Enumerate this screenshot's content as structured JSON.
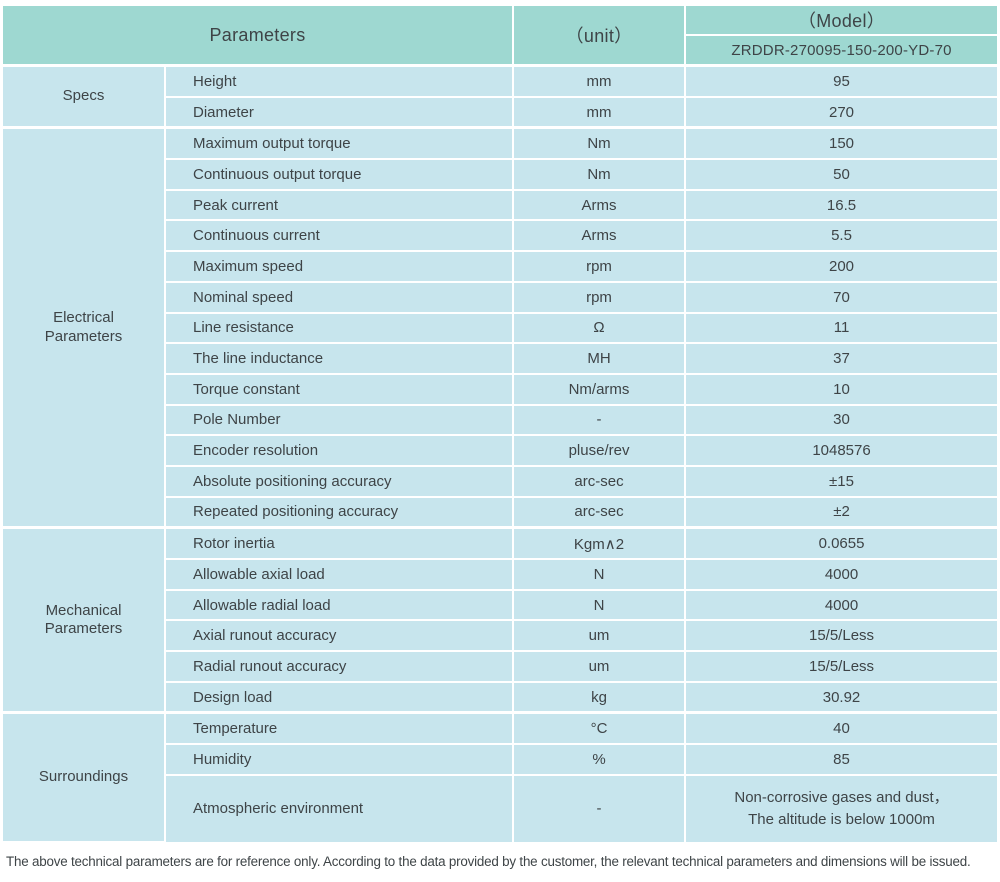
{
  "colors": {
    "header_bg": "#9ed8d1",
    "row_bg": "#c7e5ed",
    "grid": "#ffffff",
    "text": "#3e4447"
  },
  "header": {
    "parameters_label": "Parameters",
    "unit_label": "（unit）",
    "model_label": "（Model）",
    "model_value": "ZRDDR-270095-150-200-YD-70"
  },
  "sections": [
    {
      "name": "Specs",
      "name_lines": [
        "Specs"
      ],
      "rows": [
        {
          "param": "Height",
          "unit": "mm",
          "value": "95"
        },
        {
          "param": "Diameter",
          "unit": "mm",
          "value": "270"
        }
      ]
    },
    {
      "name": "Electrical Parameters",
      "name_lines": [
        "Electrical",
        "Parameters"
      ],
      "rows": [
        {
          "param": "Maximum output torque",
          "unit": "Nm",
          "value": "150"
        },
        {
          "param": "Continuous output torque",
          "unit": "Nm",
          "value": "50"
        },
        {
          "param": "Peak current",
          "unit": "Arms",
          "value": "16.5"
        },
        {
          "param": "Continuous current",
          "unit": "Arms",
          "value": "5.5"
        },
        {
          "param": "Maximum speed",
          "unit": "rpm",
          "value": "200"
        },
        {
          "param": "Nominal speed",
          "unit": "rpm",
          "value": "70"
        },
        {
          "param": "Line resistance",
          "unit": "Ω",
          "value": "11"
        },
        {
          "param": "The line inductance",
          "unit": "MH",
          "value": "37"
        },
        {
          "param": "Torque constant",
          "unit": "Nm/arms",
          "value": "10"
        },
        {
          "param": "Pole Number",
          "unit": "-",
          "value": "30"
        },
        {
          "param": "Encoder resolution",
          "unit": "pluse/rev",
          "value": "1048576"
        },
        {
          "param": "Absolute positioning accuracy",
          "unit": "arc-sec",
          "value": "±15"
        },
        {
          "param": "Repeated positioning accuracy",
          "unit": "arc-sec",
          "value": "±2"
        }
      ]
    },
    {
      "name": "Mechanical Parameters",
      "name_lines": [
        "Mechanical",
        "Parameters"
      ],
      "rows": [
        {
          "param": "Rotor inertia",
          "unit": "Kgm∧2",
          "value": "0.0655"
        },
        {
          "param": "Allowable axial load",
          "unit": "N",
          "value": "4000"
        },
        {
          "param": "Allowable radial load",
          "unit": "N",
          "value": "4000"
        },
        {
          "param": "Axial runout accuracy",
          "unit": "um",
          "value": "15/5/Less"
        },
        {
          "param": "Radial runout accuracy",
          "unit": "um",
          "value": "15/5/Less"
        },
        {
          "param": "Design load",
          "unit": "kg",
          "value": "30.92"
        }
      ]
    },
    {
      "name": "Surroundings",
      "name_lines": [
        "Surroundings"
      ],
      "rows": [
        {
          "param": "Temperature",
          "unit": "°C",
          "value": "40"
        },
        {
          "param": "Humidity",
          "unit": "%",
          "value": "85"
        },
        {
          "param": "Atmospheric environment",
          "unit": "-",
          "value": "Non-corrosive gases and dust，The altitude is below 1000m",
          "value_lines": [
            "Non-corrosive gases and dust，",
            "The altitude is below 1000m"
          ]
        }
      ]
    }
  ],
  "footnote": "The above technical parameters are for reference only. According to the data provided by the customer, the relevant technical parameters and dimensions will be issued."
}
